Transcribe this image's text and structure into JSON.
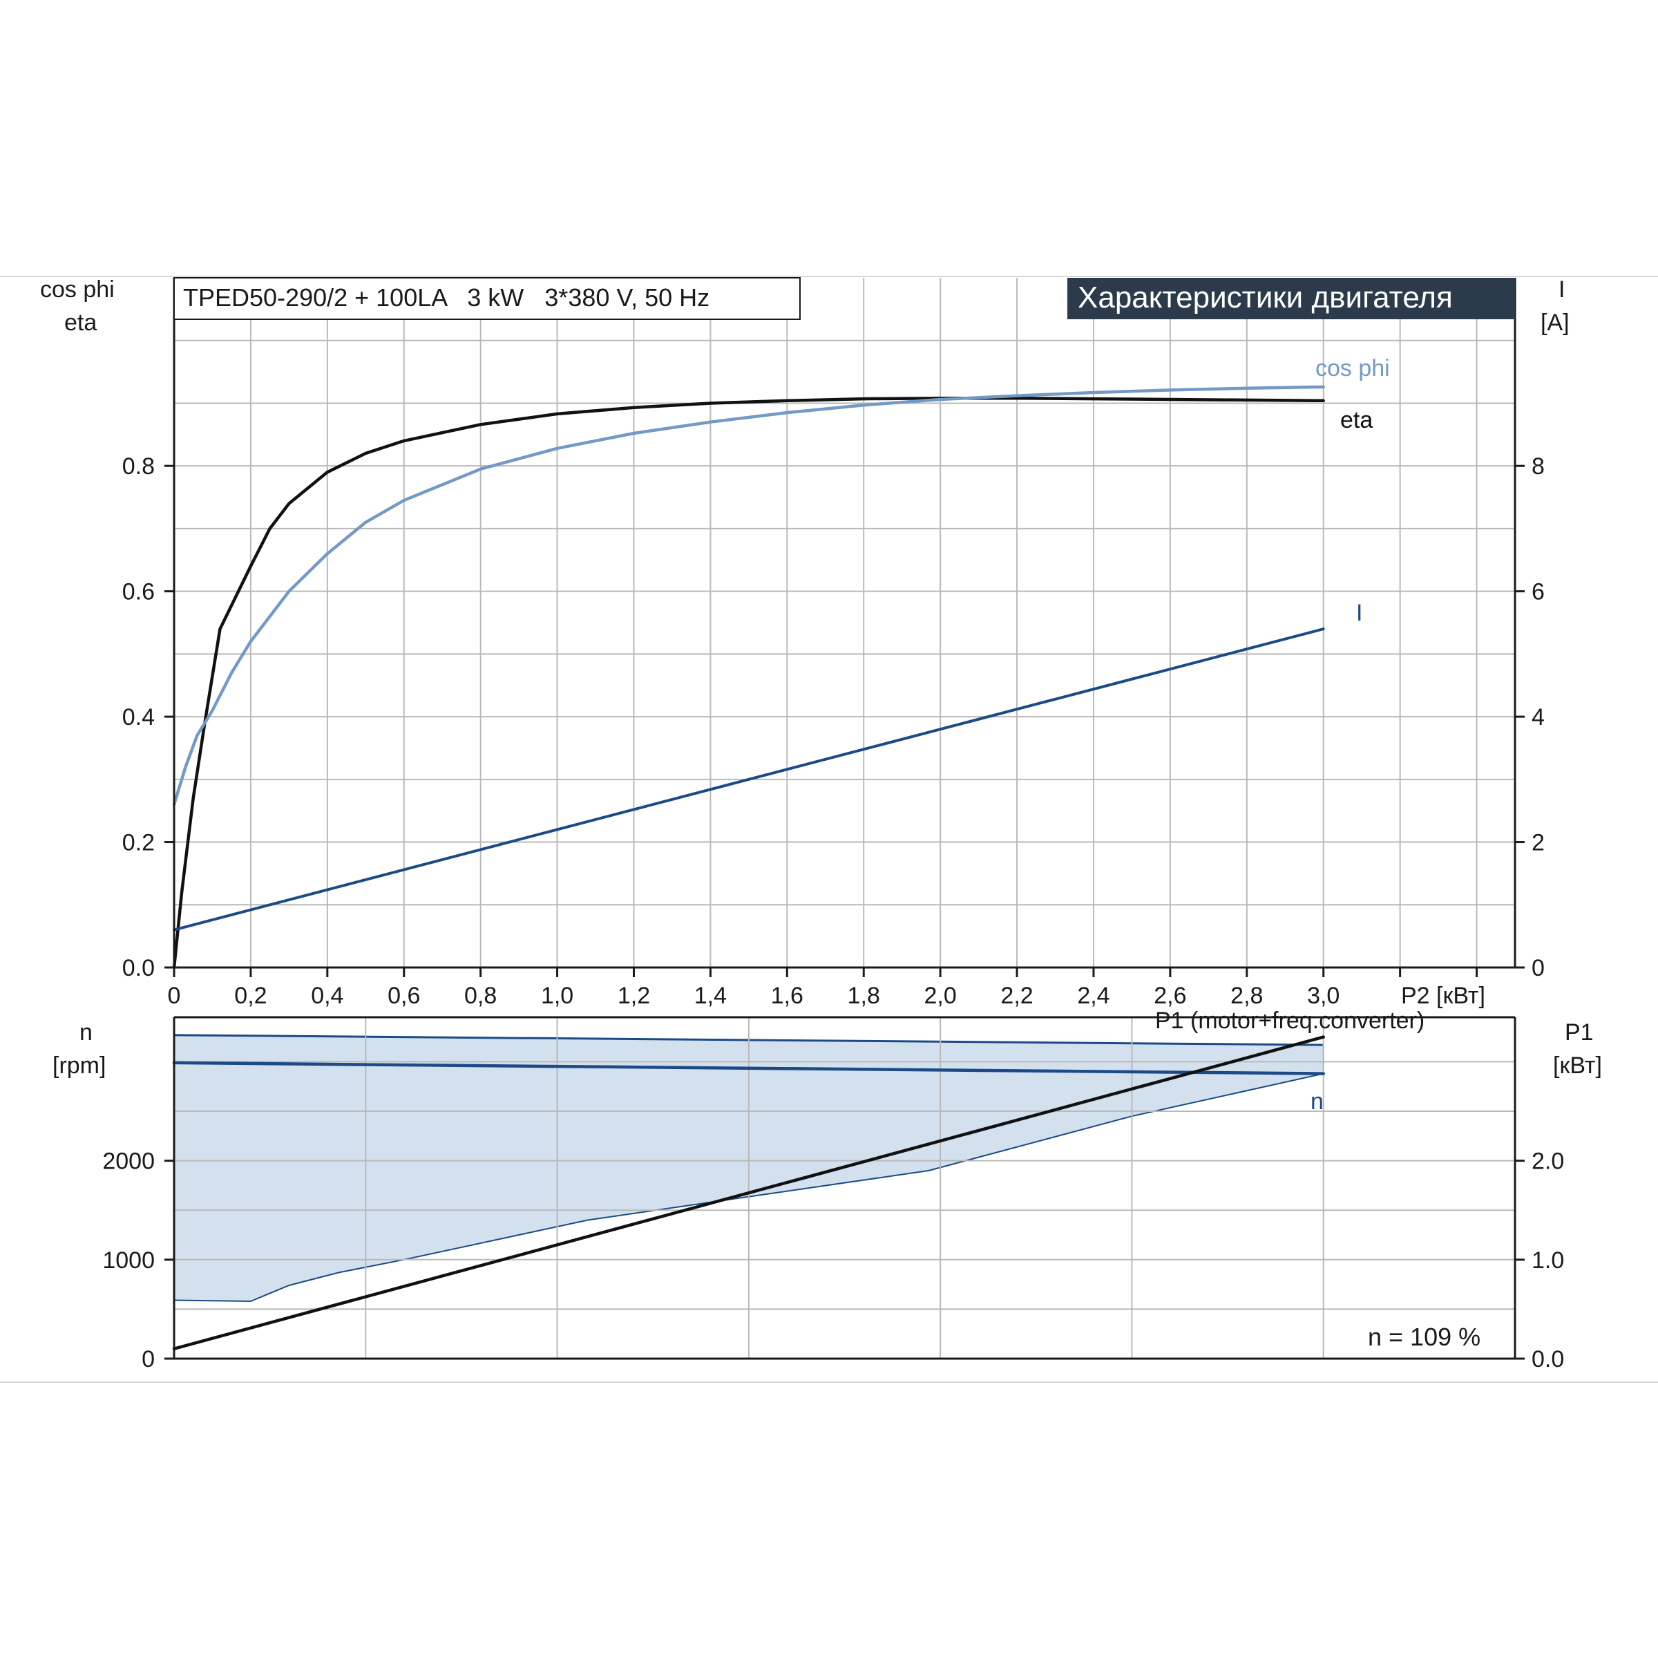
{
  "chart_data": [
    {
      "type": "line",
      "model_label": "TPED50-290/2 + 100LA   3 kW   3*380 V, 50 Hz",
      "header": "Характеристики двигателя",
      "left_axis_label": [
        "cos phi",
        "eta"
      ],
      "right_axis_label": [
        "I",
        "[A]"
      ],
      "xlabel": "P2 [кВт]",
      "x_ticks": [
        "0",
        "0,2",
        "0,4",
        "0,6",
        "0,8",
        "1,0",
        "1,2",
        "1,4",
        "1,6",
        "1,8",
        "2,0",
        "2,2",
        "2,4",
        "2,6",
        "2,8",
        "3,0"
      ],
      "xlim": [
        0,
        3.5
      ],
      "ylim_left": [
        0,
        1.1
      ],
      "y_ticks_left": [
        "0.0",
        "0.2",
        "0.4",
        "0.6",
        "0.8"
      ],
      "ylim_right": [
        0,
        11
      ],
      "y_ticks_right": [
        "0",
        "2",
        "4",
        "6",
        "8"
      ],
      "grid": true,
      "series": [
        {
          "name": "eta",
          "axis": "left",
          "color": "#111111",
          "x": [
            0,
            0.02,
            0.05,
            0.08,
            0.12,
            0.2,
            0.25,
            0.3,
            0.4,
            0.5,
            0.6,
            0.8,
            1.0,
            1.2,
            1.4,
            1.6,
            1.8,
            2.0,
            2.2,
            2.4,
            2.6,
            2.8,
            3.0
          ],
          "y": [
            0,
            0.12,
            0.27,
            0.39,
            0.54,
            0.64,
            0.7,
            0.74,
            0.79,
            0.82,
            0.84,
            0.866,
            0.883,
            0.893,
            0.9,
            0.904,
            0.907,
            0.908,
            0.908,
            0.907,
            0.906,
            0.905,
            0.904
          ]
        },
        {
          "name": "cos phi",
          "axis": "left",
          "color": "#7399c6",
          "x": [
            0,
            0.03,
            0.06,
            0.1,
            0.15,
            0.2,
            0.3,
            0.4,
            0.5,
            0.6,
            0.8,
            1.0,
            1.2,
            1.4,
            1.6,
            1.8,
            2.0,
            2.2,
            2.4,
            2.6,
            2.8,
            3.0
          ],
          "y": [
            0.26,
            0.32,
            0.37,
            0.41,
            0.47,
            0.52,
            0.6,
            0.66,
            0.71,
            0.745,
            0.795,
            0.828,
            0.852,
            0.87,
            0.885,
            0.897,
            0.906,
            0.912,
            0.917,
            0.921,
            0.924,
            0.926
          ]
        },
        {
          "name": "I",
          "axis": "right",
          "color": "#1b4a86",
          "x": [
            0,
            3.0
          ],
          "y": [
            0.6,
            5.4
          ]
        }
      ]
    },
    {
      "type": "area",
      "left_axis_label": [
        "n",
        "[rpm]"
      ],
      "right_axis_label": [
        "P1",
        "[кВт]"
      ],
      "xlim": [
        0,
        3.5
      ],
      "ylim_left": [
        0,
        3450
      ],
      "y_ticks_left": [
        "0",
        "1000",
        "2000"
      ],
      "ylim_right": [
        0,
        3.45
      ],
      "y_ticks_right": [
        "0.0",
        "1.0",
        "2.0"
      ],
      "grid": true,
      "annotation": "n = 109 %",
      "band": {
        "name": "speed range",
        "color": "#d3e0ee",
        "upper": {
          "x": [
            0,
            3.0
          ],
          "y": [
            3270,
            3170
          ]
        },
        "lower": {
          "x": [
            0,
            0.2,
            0.3,
            0.43,
            0.6,
            1.08,
            1.97,
            2.5,
            3.0
          ],
          "y": [
            590,
            580,
            740,
            870,
            1000,
            1400,
            1900,
            2450,
            2880
          ]
        }
      },
      "series": [
        {
          "name": "n",
          "axis": "left",
          "color": "#1b4a86",
          "x": [
            0,
            3.0
          ],
          "y": [
            2990,
            2880
          ]
        },
        {
          "name": "P1 (motor+freq.converter)",
          "axis": "right",
          "color": "#111111",
          "x": [
            0,
            3.0
          ],
          "y": [
            0.1,
            3.25
          ]
        }
      ]
    }
  ]
}
